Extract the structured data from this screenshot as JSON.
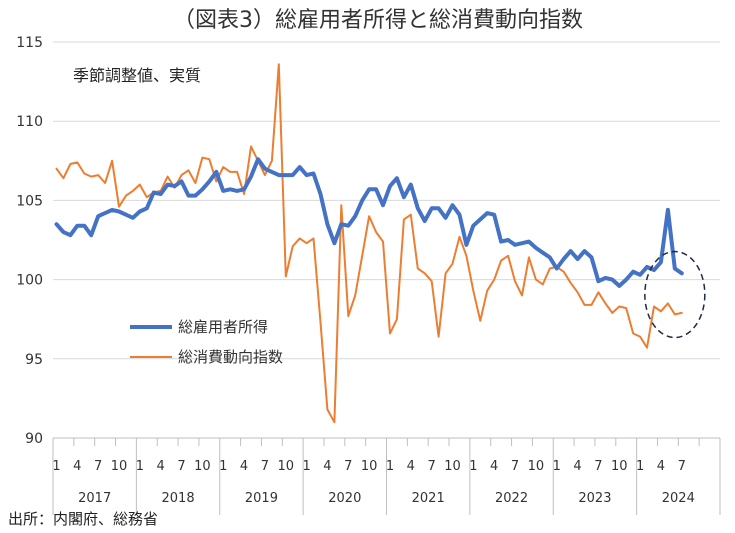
{
  "chart_data": {
    "type": "line",
    "title": "（図表3）総雇用者所得と総消費動向指数",
    "note": "季節調整値、実質",
    "source": "出所：内閣府、総務省",
    "ylim": [
      90,
      115
    ],
    "yticks": [
      "90",
      "95",
      "100",
      "105",
      "110",
      "115"
    ],
    "grid": true,
    "legend_position": "center-left",
    "start": {
      "year": 2017,
      "month": 1
    },
    "years": [
      "2017",
      "2018",
      "2019",
      "2020",
      "2021",
      "2022",
      "2023",
      "2024"
    ],
    "month_labels": [
      "1",
      "4",
      "7",
      "10"
    ],
    "highlight_month": "2024-06",
    "series": [
      {
        "name": "総雇用者所得",
        "color": "#4472C4",
        "values": [
          103.5,
          103.0,
          102.8,
          103.4,
          103.4,
          102.8,
          104.0,
          104.2,
          104.4,
          104.3,
          104.1,
          103.9,
          104.3,
          104.5,
          105.5,
          105.4,
          106.0,
          105.9,
          106.2,
          105.3,
          105.3,
          105.7,
          106.2,
          106.8,
          105.6,
          105.7,
          105.6,
          105.7,
          106.5,
          107.6,
          107.0,
          106.8,
          106.6,
          106.6,
          106.6,
          107.1,
          106.6,
          106.7,
          105.4,
          103.5,
          102.3,
          103.5,
          103.4,
          104.0,
          105.0,
          105.7,
          105.7,
          104.7,
          105.9,
          106.4,
          105.2,
          106.0,
          104.5,
          103.7,
          104.5,
          104.5,
          103.9,
          104.7,
          104.1,
          102.2,
          103.4,
          103.8,
          104.2,
          104.1,
          102.4,
          102.5,
          102.2,
          102.3,
          102.4,
          102.0,
          101.7,
          101.4,
          100.7,
          101.3,
          101.8,
          101.3,
          101.8,
          101.4,
          99.9,
          100.1,
          100.0,
          99.6,
          100.0,
          100.5,
          100.3,
          100.8,
          100.6,
          101.1,
          104.4,
          100.7,
          100.4
        ]
      },
      {
        "name": "総消費動向指数",
        "color": "#ED7D31",
        "values": [
          107.0,
          106.4,
          107.3,
          107.4,
          106.7,
          106.5,
          106.6,
          106.1,
          107.5,
          104.6,
          105.3,
          105.6,
          106.0,
          105.2,
          105.5,
          105.6,
          106.5,
          105.8,
          106.6,
          106.9,
          106.1,
          107.7,
          107.6,
          106.2,
          107.1,
          106.8,
          106.8,
          105.4,
          108.4,
          107.5,
          106.6,
          107.5,
          113.6,
          100.2,
          102.1,
          102.6,
          102.3,
          102.6,
          97.3,
          91.8,
          91.0,
          104.7,
          97.7,
          99.0,
          101.5,
          104.0,
          103.0,
          102.4,
          96.6,
          97.5,
          103.8,
          104.1,
          100.7,
          100.4,
          99.9,
          96.4,
          100.4,
          101.0,
          102.7,
          101.5,
          99.3,
          97.4,
          99.3,
          100.0,
          101.2,
          101.5,
          99.9,
          99.0,
          101.4,
          100.0,
          99.7,
          100.7,
          100.8,
          100.5,
          99.8,
          99.2,
          98.4,
          98.4,
          99.2,
          98.5,
          97.9,
          98.3,
          98.2,
          96.6,
          96.4,
          95.7,
          98.3,
          98.0,
          98.5,
          97.8,
          97.9
        ]
      }
    ]
  }
}
